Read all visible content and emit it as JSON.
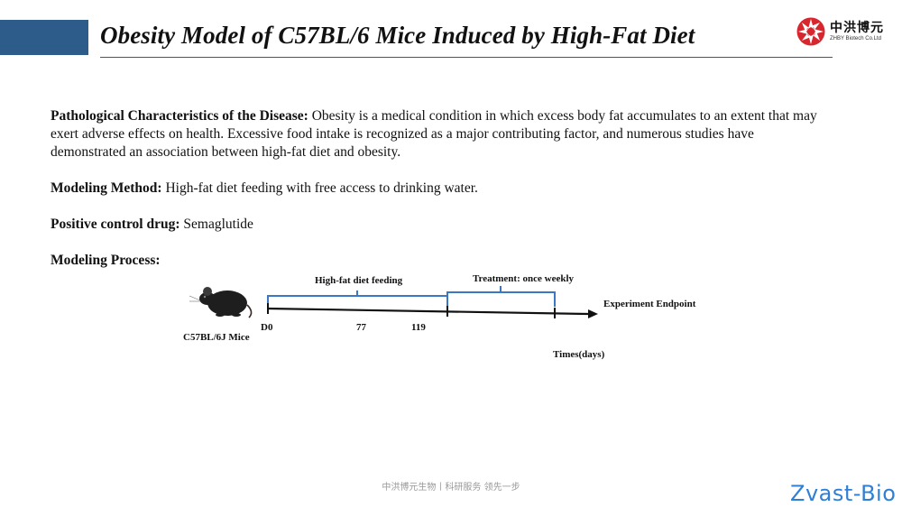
{
  "header": {
    "title": "Obesity Model of C57BL/6 Mice Induced by High-Fat Diet",
    "accent_color": "#2e5c8a"
  },
  "logo": {
    "name_cn": "中洪博元",
    "name_en": "ZHBY Biotech Co.Ltd",
    "mark_color": "#d7262e"
  },
  "sections": {
    "pathology": {
      "label": "Pathological Characteristics of the Disease:",
      "text": " Obesity is a medical condition in which excess body fat accumulates to an extent that may exert adverse effects on health. Excessive food intake is recognized as a major contributing factor, and numerous studies have demonstrated an association between high-fat diet and obesity."
    },
    "method": {
      "label": "Modeling Method:",
      "text": " High-fat diet feeding with free access to drinking water."
    },
    "control": {
      "label": "Positive control drug:",
      "text": " Semaglutide"
    },
    "process": {
      "label": "Modeling Process:"
    }
  },
  "timeline": {
    "mouse_label": "C57BL/6J Mice",
    "phase1": "High-fat diet feeding",
    "phase2": "Treatment: once weekly",
    "endpoint": "Experiment Endpoint",
    "d0": "D0",
    "d77": "77",
    "d119": "119",
    "axis_label": "Times(days)",
    "bracket_color": "#3b78c4"
  },
  "footer": {
    "text": "中洪博元生物丨科研服务 领先一步"
  },
  "watermark": {
    "text": "Zvast-Bio",
    "color": "#2f7fd6"
  }
}
